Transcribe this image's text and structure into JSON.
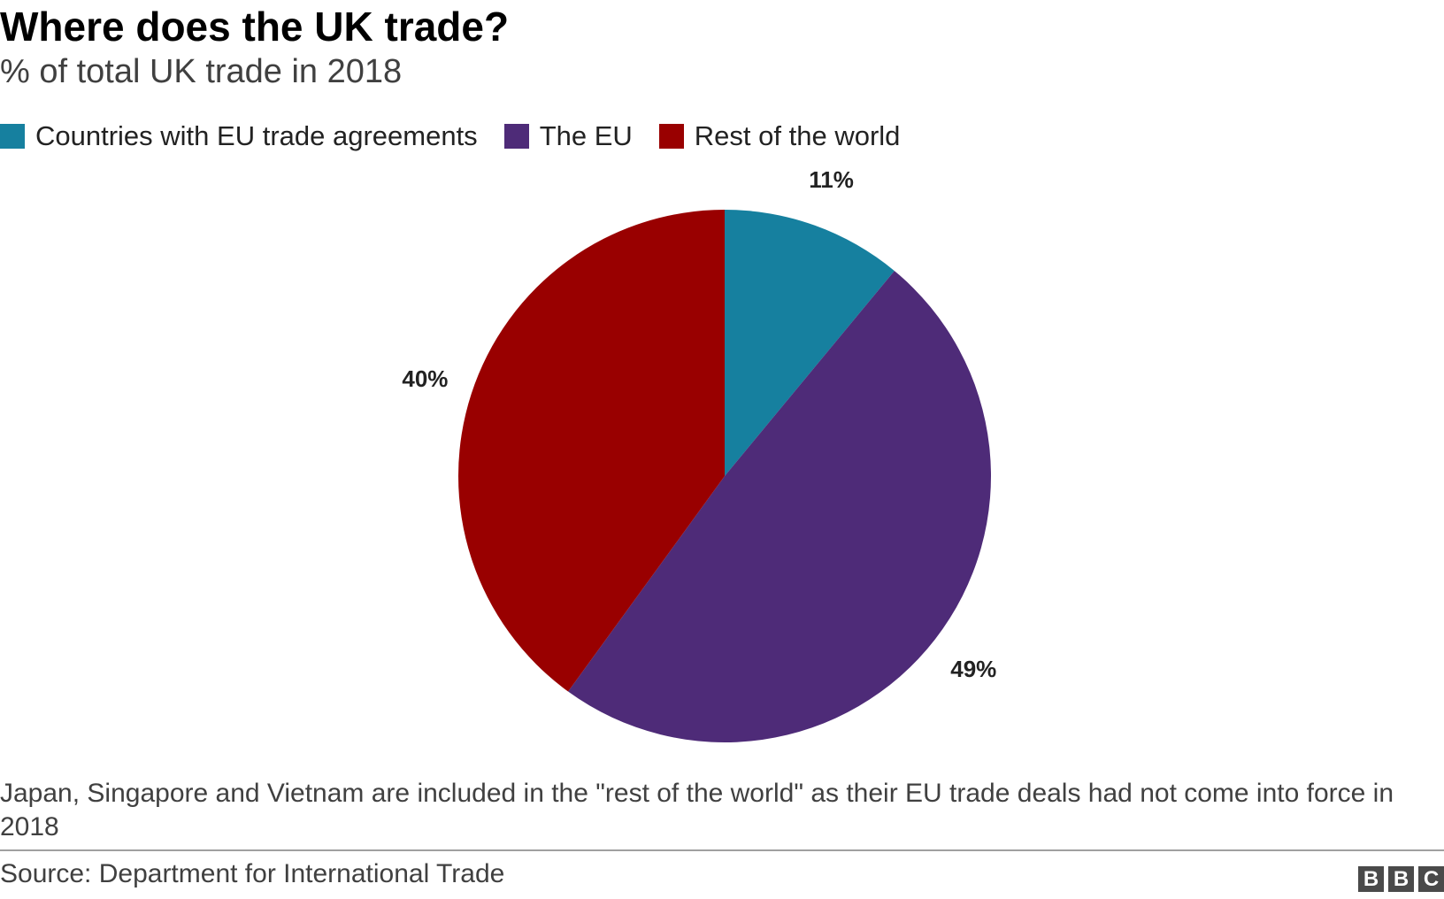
{
  "header": {
    "title": "Where does the UK trade?",
    "subtitle": "% of total UK trade in 2018"
  },
  "legend": {
    "items": [
      {
        "label": "Countries with EU trade agreements",
        "color": "#16809f"
      },
      {
        "label": "The EU",
        "color": "#4e2b78"
      },
      {
        "label": "Rest of the world",
        "color": "#990000"
      }
    ]
  },
  "chart_data": {
    "type": "pie",
    "title": "Where does the UK trade?",
    "subtitle": "% of total UK trade in 2018",
    "start_angle_deg": 0,
    "direction": "clockwise",
    "slices": [
      {
        "label": "Countries with EU trade agreements",
        "value": 11,
        "display": "11%",
        "color": "#16809f"
      },
      {
        "label": "The EU",
        "value": 49,
        "display": "49%",
        "color": "#4e2b78"
      },
      {
        "label": "Rest of the world",
        "value": 40,
        "display": "40%",
        "color": "#990000"
      }
    ],
    "legend_position": "top-left"
  },
  "footer": {
    "note": "Japan, Singapore and Vietnam are included in the \"rest of the world\" as their EU trade deals had not come into force in 2018",
    "source": "Source: Department for International Trade",
    "logo_text": "BBC",
    "logo_letters": [
      "B",
      "B",
      "C"
    ]
  }
}
